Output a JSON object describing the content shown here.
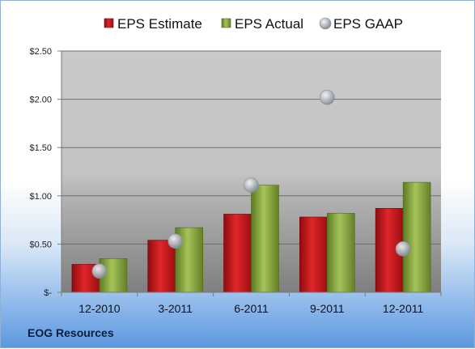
{
  "company": "EOG Resources",
  "colors": {
    "estimate": "#c8141b",
    "actual": "#86a83a",
    "gaap": "#b9bec6"
  },
  "chart_data": {
    "type": "bar",
    "categories": [
      "12-2010",
      "3-2011",
      "6-2011",
      "9-2011",
      "12-2011"
    ],
    "series": [
      {
        "name": "EPS Estimate",
        "kind": "bar",
        "values": [
          0.29,
          0.54,
          0.81,
          0.78,
          0.87
        ]
      },
      {
        "name": "EPS Actual",
        "kind": "bar",
        "values": [
          0.35,
          0.67,
          1.11,
          0.82,
          1.14
        ]
      },
      {
        "name": "EPS GAAP",
        "kind": "scatter",
        "values": [
          0.22,
          0.53,
          1.11,
          2.02,
          0.45
        ]
      }
    ],
    "y_ticks": [
      {
        "value": 0,
        "label": "$-"
      },
      {
        "value": 0.5,
        "label": "$0.50"
      },
      {
        "value": 1.0,
        "label": "$1.00"
      },
      {
        "value": 1.5,
        "label": "$1.50"
      },
      {
        "value": 2.0,
        "label": "$2.00"
      },
      {
        "value": 2.5,
        "label": "$2.50"
      }
    ],
    "ylim": [
      0,
      2.5
    ],
    "grid": true,
    "legend": "top"
  }
}
